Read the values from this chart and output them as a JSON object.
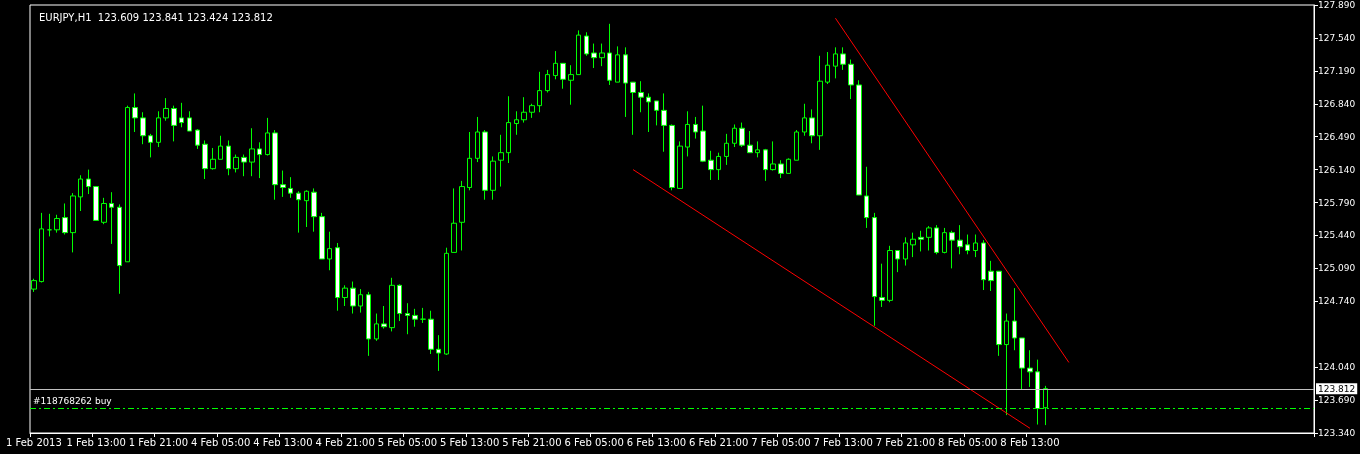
{
  "chart_data": {
    "type": "candlestick",
    "title": "EURJPY,H1  123.609 123.841 123.424 123.812",
    "categories": [
      "1 Feb 2013",
      null,
      null,
      null,
      null,
      null,
      null,
      null,
      "1 Feb 13:00",
      null,
      null,
      null,
      null,
      null,
      null,
      null,
      "1 Feb 21:00",
      null,
      null,
      null,
      null,
      null,
      null,
      null,
      "4 Feb 05:00",
      null,
      null,
      null,
      null,
      null,
      null,
      null,
      "4 Feb 13:00",
      null,
      null,
      null,
      null,
      null,
      null,
      null,
      "4 Feb 21:00",
      null,
      null,
      null,
      null,
      null,
      null,
      null,
      "5 Feb 05:00",
      null,
      null,
      null,
      null,
      null,
      null,
      null,
      "5 Feb 13:00",
      null,
      null,
      null,
      null,
      null,
      null,
      null,
      "5 Feb 21:00",
      null,
      null,
      null,
      null,
      null,
      null,
      null,
      "6 Feb 05:00",
      null,
      null,
      null,
      null,
      null,
      null,
      null,
      "6 Feb 13:00",
      null,
      null,
      null,
      null,
      null,
      null,
      null,
      "6 Feb 21:00",
      null,
      null,
      null,
      null,
      null,
      null,
      null,
      "7 Feb 05:00",
      null,
      null,
      null,
      null,
      null,
      null,
      null,
      "7 Feb 13:00",
      null,
      null,
      null,
      null,
      null,
      null,
      null,
      "7 Feb 21:00",
      null,
      null,
      null,
      null,
      null,
      null,
      null,
      "8 Feb 05:00",
      null,
      null,
      null,
      null,
      null,
      null,
      null,
      "8 Feb 13:00",
      null,
      null,
      null,
      null,
      null,
      null,
      null,
      null,
      null,
      null,
      null,
      null,
      null,
      null,
      null,
      null,
      null,
      null,
      null,
      null,
      null,
      null,
      null,
      null,
      null,
      null,
      null,
      null,
      null,
      null,
      null,
      null,
      null,
      null,
      null,
      null
    ],
    "series": [
      {
        "color": "#00ff00",
        "ohlc": [
          [
            124.87,
            124.98,
            124.84,
            124.96
          ],
          [
            124.95,
            125.68,
            124.94,
            125.51
          ],
          [
            125.5,
            125.67,
            125.43,
            125.5
          ],
          [
            125.5,
            125.66,
            125.47,
            125.62
          ],
          [
            125.63,
            125.78,
            125.45,
            125.47
          ],
          [
            125.47,
            125.89,
            125.26,
            125.86
          ],
          [
            125.85,
            126.08,
            125.7,
            126.04
          ],
          [
            126.04,
            126.14,
            125.88,
            125.96
          ],
          [
            125.96,
            125.96,
            125.6,
            125.6
          ],
          [
            125.58,
            125.84,
            125.56,
            125.78
          ],
          [
            125.78,
            125.9,
            125.35,
            125.74
          ],
          [
            125.74,
            125.77,
            124.82,
            125.12
          ],
          [
            125.16,
            126.82,
            125.16,
            126.8
          ],
          [
            126.8,
            126.95,
            126.54,
            126.69
          ],
          [
            126.69,
            126.75,
            126.41,
            126.5
          ],
          [
            126.5,
            126.52,
            126.27,
            126.43
          ],
          [
            126.43,
            126.76,
            126.38,
            126.69
          ],
          [
            126.69,
            126.9,
            126.66,
            126.79
          ],
          [
            126.79,
            126.82,
            126.44,
            126.61
          ],
          [
            126.69,
            126.85,
            126.59,
            126.64
          ],
          [
            126.69,
            126.76,
            126.55,
            126.55
          ],
          [
            126.56,
            126.57,
            126.36,
            126.4
          ],
          [
            126.41,
            126.45,
            126.04,
            126.15
          ],
          [
            126.15,
            126.37,
            126.14,
            126.25
          ],
          [
            126.25,
            126.5,
            126.25,
            126.39
          ],
          [
            126.39,
            126.45,
            126.08,
            126.15
          ],
          [
            126.15,
            126.3,
            126.11,
            126.27
          ],
          [
            126.27,
            126.3,
            126.07,
            126.22
          ],
          [
            126.22,
            126.58,
            126.07,
            126.36
          ],
          [
            126.36,
            126.43,
            126.05,
            126.3
          ],
          [
            126.3,
            126.69,
            126.29,
            126.53
          ],
          [
            126.53,
            126.56,
            125.82,
            125.98
          ],
          [
            125.98,
            126.13,
            125.85,
            125.95
          ],
          [
            125.94,
            126.06,
            125.84,
            125.89
          ],
          [
            125.89,
            125.91,
            125.47,
            125.82
          ],
          [
            125.81,
            125.92,
            125.53,
            125.91
          ],
          [
            125.9,
            125.94,
            125.48,
            125.64
          ],
          [
            125.64,
            125.68,
            125.19,
            125.19
          ],
          [
            125.19,
            125.48,
            125.07,
            125.3
          ],
          [
            125.31,
            125.36,
            124.64,
            124.78
          ],
          [
            124.78,
            124.91,
            124.69,
            124.88
          ],
          [
            124.88,
            124.95,
            124.61,
            124.69
          ],
          [
            124.69,
            124.87,
            124.62,
            124.81
          ],
          [
            124.81,
            124.84,
            124.16,
            124.34
          ],
          [
            124.34,
            124.61,
            124.32,
            124.5
          ],
          [
            124.5,
            124.69,
            124.45,
            124.47
          ],
          [
            124.46,
            124.99,
            124.42,
            124.91
          ],
          [
            124.91,
            124.92,
            124.53,
            124.61
          ],
          [
            124.61,
            124.72,
            124.39,
            124.59
          ],
          [
            124.59,
            124.66,
            124.47,
            124.55
          ],
          [
            124.55,
            124.67,
            124.51,
            124.55
          ],
          [
            124.55,
            124.64,
            124.18,
            124.23
          ],
          [
            124.23,
            124.38,
            124.0,
            124.19
          ],
          [
            124.18,
            125.31,
            124.17,
            125.25
          ],
          [
            125.26,
            125.94,
            125.26,
            125.57
          ],
          [
            125.58,
            126.02,
            125.28,
            125.96
          ],
          [
            125.95,
            126.54,
            125.92,
            126.26
          ],
          [
            126.26,
            126.7,
            126.22,
            126.54
          ],
          [
            126.54,
            126.56,
            125.82,
            125.92
          ],
          [
            125.92,
            126.28,
            125.82,
            126.23
          ],
          [
            126.24,
            126.51,
            125.96,
            126.32
          ],
          [
            126.32,
            126.92,
            126.21,
            126.64
          ],
          [
            126.63,
            126.76,
            126.51,
            126.67
          ],
          [
            126.67,
            126.91,
            126.64,
            126.75
          ],
          [
            126.75,
            126.84,
            126.69,
            126.82
          ],
          [
            126.82,
            127.18,
            126.75,
            126.98
          ],
          [
            126.98,
            127.2,
            126.96,
            127.15
          ],
          [
            127.14,
            127.4,
            127.1,
            127.27
          ],
          [
            127.27,
            127.27,
            127.0,
            127.1
          ],
          [
            127.09,
            127.25,
            126.83,
            127.15
          ],
          [
            127.15,
            127.62,
            127.15,
            127.57
          ],
          [
            127.56,
            127.6,
            127.35,
            127.37
          ],
          [
            127.38,
            127.48,
            127.22,
            127.33
          ],
          [
            127.33,
            127.48,
            127.24,
            127.38
          ],
          [
            127.38,
            127.69,
            127.04,
            127.09
          ],
          [
            127.07,
            127.45,
            127.07,
            127.36
          ],
          [
            127.36,
            127.44,
            126.7,
            127.06
          ],
          [
            127.07,
            127.07,
            126.51,
            126.96
          ],
          [
            126.96,
            127.08,
            126.75,
            126.91
          ],
          [
            126.91,
            126.95,
            126.54,
            126.86
          ],
          [
            126.87,
            126.87,
            126.61,
            126.77
          ],
          [
            126.77,
            126.95,
            126.33,
            126.61
          ],
          [
            126.61,
            126.62,
            125.92,
            125.95
          ],
          [
            125.94,
            126.44,
            125.94,
            126.39
          ],
          [
            126.38,
            126.76,
            126.28,
            126.62
          ],
          [
            126.62,
            126.7,
            126.47,
            126.54
          ],
          [
            126.55,
            126.82,
            126.22,
            126.23
          ],
          [
            126.24,
            126.34,
            126.03,
            126.14
          ],
          [
            126.14,
            126.32,
            126.03,
            126.28
          ],
          [
            126.28,
            126.52,
            126.19,
            126.42
          ],
          [
            126.42,
            126.62,
            126.38,
            126.58
          ],
          [
            126.58,
            126.64,
            126.38,
            126.4
          ],
          [
            126.4,
            126.55,
            126.32,
            126.32
          ],
          [
            126.32,
            126.44,
            126.27,
            126.35
          ],
          [
            126.35,
            126.36,
            126.02,
            126.14
          ],
          [
            126.14,
            126.44,
            126.13,
            126.2
          ],
          [
            126.2,
            126.24,
            126.05,
            126.1
          ],
          [
            126.1,
            126.26,
            126.1,
            126.25
          ],
          [
            126.24,
            126.56,
            126.24,
            126.54
          ],
          [
            126.54,
            126.84,
            126.5,
            126.69
          ],
          [
            126.69,
            126.78,
            126.42,
            126.5
          ],
          [
            126.5,
            127.35,
            126.35,
            127.08
          ],
          [
            127.07,
            127.39,
            127.05,
            127.25
          ],
          [
            127.24,
            127.44,
            127.11,
            127.37
          ],
          [
            127.37,
            127.44,
            127.2,
            127.26
          ],
          [
            127.26,
            127.31,
            126.89,
            127.04
          ],
          [
            127.04,
            127.09,
            125.87,
            125.87
          ],
          [
            125.86,
            126.17,
            125.52,
            125.63
          ],
          [
            125.63,
            125.68,
            124.48,
            124.79
          ],
          [
            124.78,
            125.14,
            124.68,
            124.75
          ],
          [
            124.75,
            125.33,
            124.73,
            125.28
          ],
          [
            125.28,
            125.28,
            125.05,
            125.19
          ],
          [
            125.19,
            125.42,
            125.12,
            125.36
          ],
          [
            125.34,
            125.47,
            125.21,
            125.4
          ],
          [
            125.42,
            125.49,
            125.27,
            125.4
          ],
          [
            125.42,
            125.54,
            125.28,
            125.52
          ],
          [
            125.52,
            125.55,
            125.24,
            125.26
          ],
          [
            125.26,
            125.52,
            125.25,
            125.47
          ],
          [
            125.47,
            125.49,
            125.09,
            125.39
          ],
          [
            125.39,
            125.55,
            125.24,
            125.32
          ],
          [
            125.34,
            125.45,
            125.24,
            125.28
          ],
          [
            125.28,
            125.45,
            125.21,
            125.36
          ],
          [
            125.36,
            125.39,
            124.86,
            124.97
          ],
          [
            125.06,
            125.17,
            124.85,
            124.96
          ],
          [
            125.06,
            125.06,
            124.16,
            124.28
          ],
          [
            124.28,
            124.61,
            123.53,
            124.53
          ],
          [
            124.53,
            124.88,
            124.22,
            124.35
          ],
          [
            124.35,
            124.35,
            123.8,
            124.03
          ],
          [
            124.03,
            124.22,
            123.83,
            123.99
          ],
          [
            123.99,
            124.12,
            123.43,
            123.6
          ],
          [
            123.609,
            123.841,
            123.424,
            123.812
          ],
          null,
          null,
          null,
          null,
          null,
          null,
          null,
          null,
          null,
          null,
          null,
          null,
          null,
          null,
          null,
          null,
          null,
          null,
          null,
          null,
          null,
          null,
          null,
          null,
          null,
          null,
          null,
          null,
          null,
          null,
          null,
          null,
          null,
          null
        ]
      },
      {
        "type": "line",
        "color": "#ff0000",
        "line_style": "solid",
        "values": [
          null,
          null,
          null,
          null,
          null,
          null,
          null,
          null,
          null,
          null,
          null,
          null,
          null,
          null,
          null,
          null,
          null,
          null,
          null,
          null,
          null,
          null,
          null,
          null,
          null,
          null,
          null,
          null,
          null,
          null,
          null,
          null,
          null,
          null,
          null,
          null,
          null,
          null,
          null,
          null,
          null,
          null,
          null,
          null,
          null,
          null,
          null,
          null,
          null,
          null,
          null,
          null,
          null,
          null,
          null,
          null,
          null,
          null,
          null,
          null,
          null,
          null,
          null,
          null,
          null,
          null,
          null,
          null,
          null,
          null,
          null,
          null,
          null,
          null,
          null,
          null,
          null,
          null,
          null,
          null,
          null,
          null,
          null,
          null,
          null,
          null,
          null,
          null,
          null,
          null,
          null,
          null,
          null,
          null,
          null,
          null,
          null,
          null,
          null,
          null,
          null,
          null,
          null,
          127.75,
          null,
          null,
          null,
          null,
          null,
          null,
          null,
          null,
          null,
          null,
          null,
          null,
          null,
          null,
          null,
          null,
          null,
          null,
          null,
          null,
          null,
          null,
          null,
          null,
          null,
          null,
          null,
          null,
          null,
          124.09,
          null,
          null,
          null,
          null,
          null,
          null,
          null,
          null,
          null,
          null,
          null,
          null,
          null,
          null,
          null,
          null,
          null,
          null,
          null,
          null,
          null,
          null,
          null,
          null,
          null,
          null,
          null,
          null,
          null,
          null,
          null
        ]
      },
      {
        "type": "line",
        "color": "#ff0000",
        "line_style": "solid",
        "values": [
          null,
          null,
          null,
          null,
          null,
          null,
          null,
          null,
          null,
          null,
          null,
          null,
          null,
          null,
          null,
          null,
          null,
          null,
          null,
          null,
          null,
          null,
          null,
          null,
          null,
          null,
          null,
          null,
          null,
          null,
          null,
          null,
          null,
          null,
          null,
          null,
          null,
          null,
          null,
          null,
          null,
          null,
          null,
          null,
          null,
          null,
          null,
          null,
          null,
          null,
          null,
          null,
          null,
          null,
          null,
          null,
          null,
          null,
          null,
          null,
          null,
          null,
          null,
          null,
          null,
          null,
          null,
          null,
          null,
          null,
          null,
          null,
          null,
          null,
          null,
          null,
          null,
          126.14,
          null,
          null,
          null,
          null,
          null,
          null,
          null,
          null,
          null,
          null,
          null,
          null,
          null,
          null,
          null,
          null,
          null,
          null,
          null,
          null,
          null,
          null,
          null,
          null,
          null,
          null,
          null,
          null,
          null,
          null,
          null,
          null,
          null,
          null,
          null,
          null,
          null,
          null,
          null,
          null,
          null,
          null,
          null,
          null,
          null,
          null,
          null,
          null,
          null,
          null,
          123.39,
          null,
          null,
          null,
          null,
          null,
          null,
          null,
          null,
          null,
          null,
          null,
          null,
          null,
          null,
          null,
          null,
          null,
          null,
          null,
          null,
          null,
          null,
          null,
          null,
          null,
          null,
          null,
          null,
          null,
          null,
          null,
          null,
          null,
          null,
          null,
          null
        ]
      }
    ],
    "ylim": [
      123.34,
      127.89
    ],
    "yticks": [
      {
        "value": 123.34,
        "label": "123.340"
      },
      {
        "value": 123.69,
        "label": "123.690"
      },
      {
        "value": 124.04,
        "label": "124.040"
      },
      {
        "value": 124.74,
        "label": "124.740"
      },
      {
        "value": 125.09,
        "label": "125.090"
      },
      {
        "value": 125.44,
        "label": "125.440"
      },
      {
        "value": 125.79,
        "label": "125.790"
      },
      {
        "value": 126.14,
        "label": "126.140"
      },
      {
        "value": 126.49,
        "label": "126.490"
      },
      {
        "value": 126.84,
        "label": "126.840"
      },
      {
        "value": 127.19,
        "label": "127.190"
      },
      {
        "value": 127.54,
        "label": "127.540"
      },
      {
        "value": 127.89,
        "label": "127.890"
      }
    ],
    "ref_lines": [
      {
        "axis": "y",
        "value": 123.812,
        "label": "123.812",
        "color": "#c0c0c0",
        "line_style": "solid"
      },
      {
        "axis": "y",
        "value": 123.6,
        "label": "#118768262 buy",
        "color": "#00ff00",
        "line_style": "dashed"
      }
    ],
    "grid": false
  }
}
